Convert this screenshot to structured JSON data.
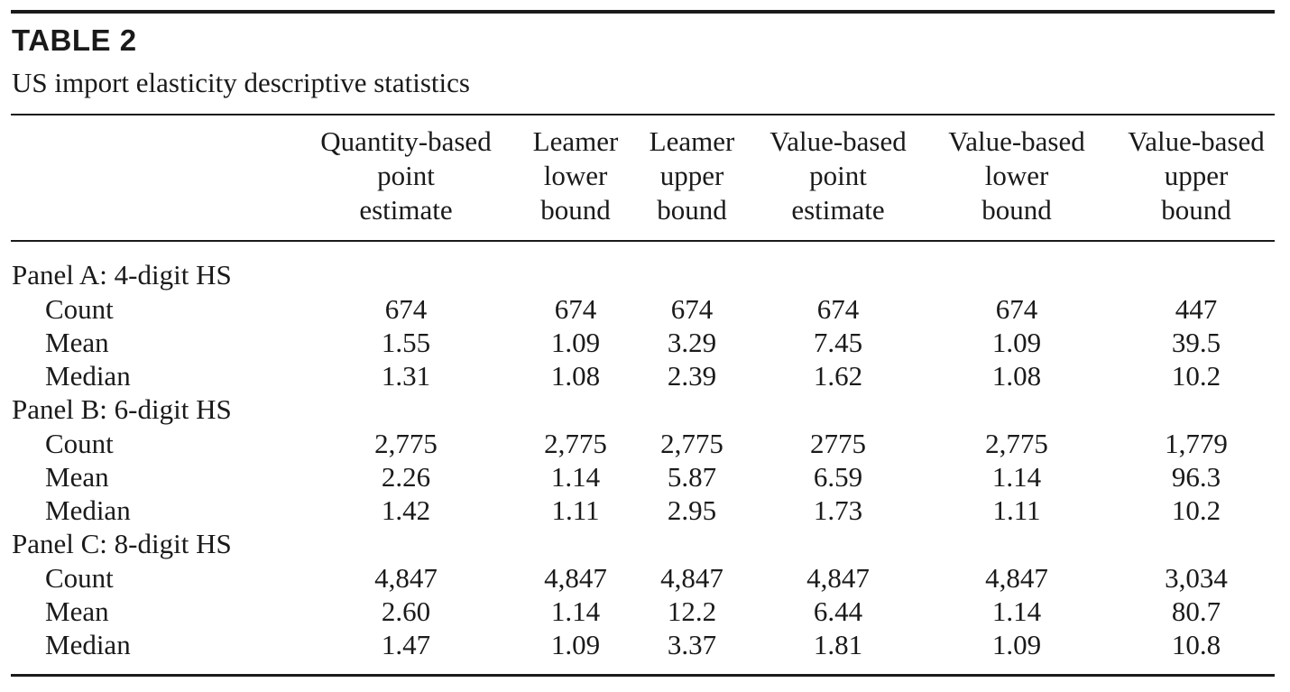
{
  "table": {
    "label": "TABLE 2",
    "caption": "US import elasticity descriptive statistics",
    "columns": [
      [
        "Quantity-based",
        "point",
        "estimate"
      ],
      [
        "Leamer",
        "lower",
        "bound"
      ],
      [
        "Leamer",
        "upper",
        "bound"
      ],
      [
        "Value-based",
        "point",
        "estimate"
      ],
      [
        "Value-based",
        "lower",
        "bound"
      ],
      [
        "Value-based",
        "upper",
        "bound"
      ]
    ],
    "panels": [
      {
        "title": "Panel A: 4-digit HS",
        "rows": [
          {
            "stat": "Count",
            "values": [
              "674",
              "674",
              "674",
              "674",
              "674",
              "447"
            ]
          },
          {
            "stat": "Mean",
            "values": [
              "1.55",
              "1.09",
              "3.29",
              "7.45",
              "1.09",
              "39.5"
            ]
          },
          {
            "stat": "Median",
            "values": [
              "1.31",
              "1.08",
              "2.39",
              "1.62",
              "1.08",
              "10.2"
            ]
          }
        ]
      },
      {
        "title": "Panel B: 6-digit HS",
        "rows": [
          {
            "stat": "Count",
            "values": [
              "2,775",
              "2,775",
              "2,775",
              "2775",
              "2,775",
              "1,779"
            ]
          },
          {
            "stat": "Mean",
            "values": [
              "2.26",
              "1.14",
              "5.87",
              "6.59",
              "1.14",
              "96.3"
            ]
          },
          {
            "stat": "Median",
            "values": [
              "1.42",
              "1.11",
              "2.95",
              "1.73",
              "1.11",
              "10.2"
            ]
          }
        ]
      },
      {
        "title": "Panel C: 8-digit HS",
        "rows": [
          {
            "stat": "Count",
            "values": [
              "4,847",
              "4,847",
              "4,847",
              "4,847",
              "4,847",
              "3,034"
            ]
          },
          {
            "stat": "Mean",
            "values": [
              "2.60",
              "1.14",
              "12.2",
              "6.44",
              "1.14",
              "80.7"
            ]
          },
          {
            "stat": "Median",
            "values": [
              "1.47",
              "1.09",
              "3.37",
              "1.81",
              "1.09",
              "10.8"
            ]
          }
        ]
      }
    ]
  }
}
